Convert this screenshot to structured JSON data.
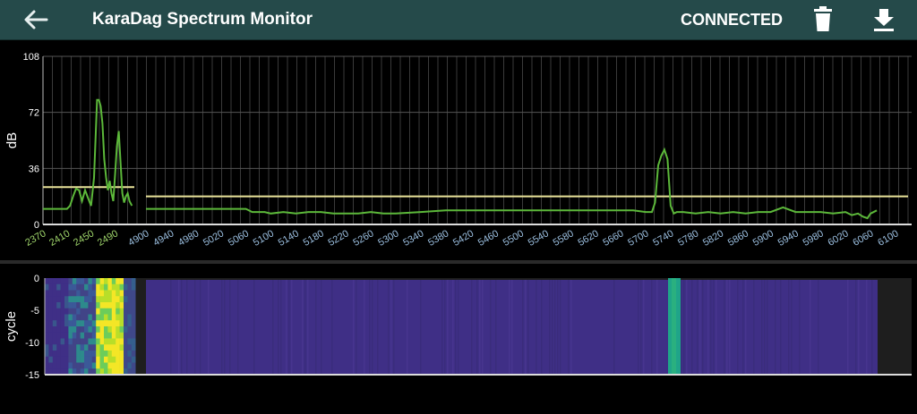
{
  "app": {
    "title": "KaraDag Spectrum Monitor",
    "status": "CONNECTED",
    "back_icon": "arrow-left-icon",
    "delete_icon": "trash-icon",
    "download_icon": "download-icon"
  },
  "colors": {
    "header_bg": "#254a4a",
    "trace": "#5cb83a",
    "threshold": "#e9e39a",
    "tick_band1": "#9ed46a",
    "tick_band2": "#9bbfe0",
    "waterfall_base": "#3f2f86",
    "waterfall_hot": "#f4e626",
    "waterfall_peak": "#1fa489"
  },
  "chart_data": {
    "type": "line",
    "ylabel": "dB",
    "ylim": [
      0,
      108
    ],
    "yticks": [
      0,
      36,
      72,
      108
    ],
    "grid": true,
    "band1": {
      "ticks": [
        2370,
        2410,
        2450,
        2490
      ],
      "range": [
        2370,
        2522
      ],
      "threshold": 24,
      "x": [
        2370,
        2390,
        2405,
        2410,
        2415,
        2420,
        2425,
        2430,
        2435,
        2440,
        2445,
        2450,
        2455,
        2460,
        2463,
        2466,
        2469,
        2472,
        2475,
        2478,
        2481,
        2484,
        2487,
        2490,
        2493,
        2496,
        2499,
        2502,
        2505,
        2508,
        2511,
        2514,
        2518
      ],
      "y": [
        10,
        10,
        10,
        10,
        12,
        18,
        23,
        22,
        15,
        22,
        17,
        12,
        30,
        80,
        80,
        76,
        65,
        42,
        30,
        22,
        28,
        20,
        15,
        32,
        50,
        60,
        40,
        20,
        14,
        18,
        20,
        15,
        12
      ]
    },
    "band2": {
      "ticks": [
        4900,
        4940,
        4980,
        5020,
        5060,
        5100,
        5140,
        5180,
        5220,
        5260,
        5300,
        5340,
        5380,
        5420,
        5460,
        5500,
        5540,
        5580,
        5620,
        5660,
        5700,
        5740,
        5780,
        5820,
        5860,
        5900,
        5940,
        5980,
        6020,
        6060,
        6100
      ],
      "range": [
        4900,
        6100
      ],
      "threshold": 18,
      "x": [
        4900,
        4950,
        5000,
        5040,
        5060,
        5070,
        5090,
        5100,
        5120,
        5140,
        5160,
        5180,
        5200,
        5220,
        5240,
        5260,
        5280,
        5300,
        5340,
        5380,
        5420,
        5460,
        5500,
        5540,
        5580,
        5620,
        5660,
        5680,
        5700,
        5710,
        5715,
        5720,
        5725,
        5730,
        5735,
        5740,
        5745,
        5750,
        5760,
        5780,
        5800,
        5820,
        5840,
        5860,
        5880,
        5900,
        5920,
        5940,
        5950,
        5960,
        5980,
        6000,
        6020,
        6030,
        6040,
        6048,
        6055,
        6060,
        6070
      ],
      "y": [
        10,
        10,
        10,
        10,
        10,
        8,
        8,
        7,
        8,
        7,
        8,
        8,
        7,
        7,
        7,
        8,
        7,
        7,
        8,
        9,
        9,
        9,
        9,
        9,
        9,
        9,
        9,
        9,
        8,
        8,
        14,
        38,
        44,
        48,
        42,
        12,
        7,
        8,
        8,
        7,
        8,
        7,
        8,
        7,
        8,
        8,
        11,
        8,
        8,
        8,
        8,
        7,
        8,
        6,
        7,
        5,
        4,
        7,
        9
      ]
    }
  },
  "waterfall": {
    "ylabel": "cycle",
    "yticks": [
      0,
      -5,
      -10,
      -15
    ]
  }
}
